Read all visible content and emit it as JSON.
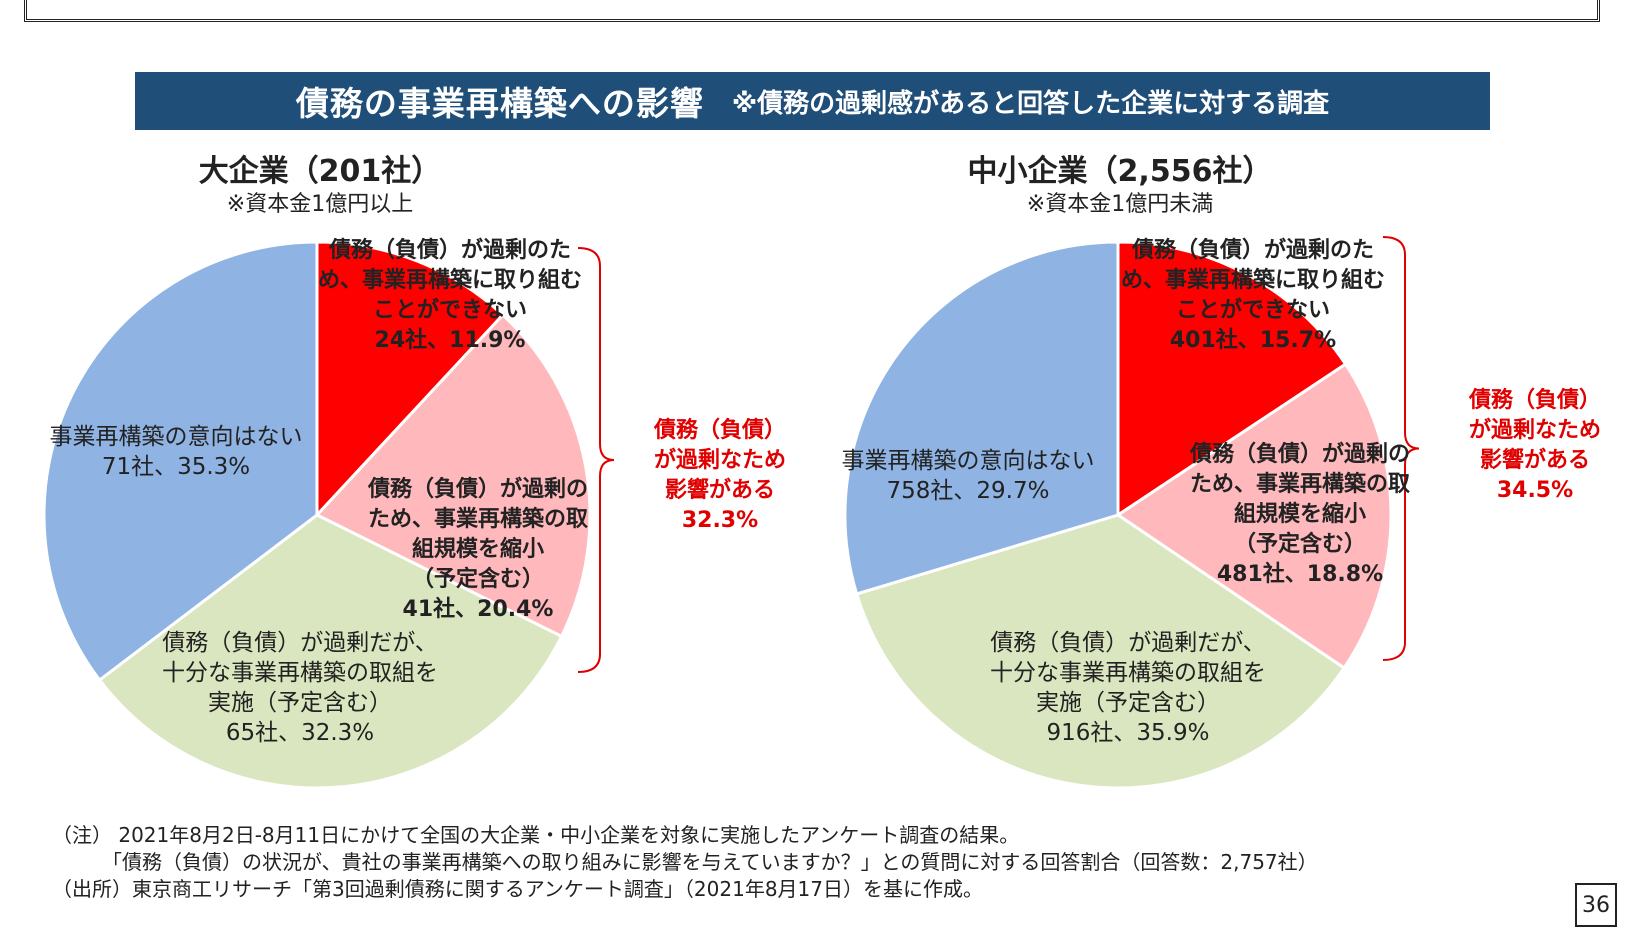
{
  "header": {
    "title": "債務の事業再構築への影響",
    "subtitle": "※債務の過剰感があると回答した企業に対する調査"
  },
  "colors": {
    "banner": "#1f4e79",
    "unable": "#ff0000",
    "reduce": "#ffb9bc",
    "enough": "#d9e6bf",
    "no_intent": "#8fb3e2",
    "bracket": "#e00000"
  },
  "chart_data": [
    {
      "type": "pie",
      "title": "大企業（201社）",
      "subtitle": "※資本金1億円以上",
      "slices": [
        {
          "key": "unable",
          "label_lines": [
            "債務（負債）が過剰のた",
            "め、事業再構築に取り組む",
            "ことができない",
            "24社、11.9%"
          ],
          "value": 11.9
        },
        {
          "key": "reduce",
          "label_lines": [
            "債務（負債）が過剰の",
            "ため、事業再構築の取",
            "組規模を縮小",
            "（予定含む）",
            "41社、20.4%"
          ],
          "value": 20.4
        },
        {
          "key": "enough",
          "label_lines": [
            "債務（負債）が過剰だが、",
            "十分な事業再構築の取組を",
            "実施（予定含む）",
            "65社、32.3%"
          ],
          "value": 32.3
        },
        {
          "key": "no_intent",
          "label_lines": [
            "事業再構築の意向はない",
            "71社、35.3%"
          ],
          "value": 35.3
        }
      ],
      "bracket_label": [
        "債務（負債）",
        "が過剰なため",
        "影響がある",
        "32.3%"
      ]
    },
    {
      "type": "pie",
      "title": "中小企業（2,556社）",
      "subtitle": "※資本金1億円未満",
      "slices": [
        {
          "key": "unable",
          "label_lines": [
            "債務（負債）が過剰のた",
            "め、事業再構築に取り組む",
            "ことができない",
            "401社、15.7%"
          ],
          "value": 15.7
        },
        {
          "key": "reduce",
          "label_lines": [
            "債務（負債）が過剰の",
            "ため、事業再構築の取",
            "組規模を縮小",
            "（予定含む）",
            "481社、18.8%"
          ],
          "value": 18.8
        },
        {
          "key": "enough",
          "label_lines": [
            "債務（負債）が過剰だが、",
            "十分な事業再構築の取組を",
            "実施（予定含む）",
            "916社、35.9%"
          ],
          "value": 35.9
        },
        {
          "key": "no_intent",
          "label_lines": [
            "事業再構築の意向はない",
            "758社、29.7%"
          ],
          "value": 29.7
        }
      ],
      "bracket_label": [
        "債務（負債）",
        "が過剰なため",
        "影響がある",
        "34.5%"
      ]
    }
  ],
  "notes": [
    "（注） 2021年8月2日-8月11日にかけて全国の大企業・中小企業を対象に実施したアンケート調査の結果。",
    "　　　「債務（負債）の状況が、貴社の事業再構築への取り組みに影響を与えていますか？」との質問に対する回答割合（回答数：2,757社）",
    "（出所）東京商工リサーチ「第3回過剰債務に関するアンケート調査」（2021年8月17日）を基に作成。"
  ],
  "page_number": "36"
}
